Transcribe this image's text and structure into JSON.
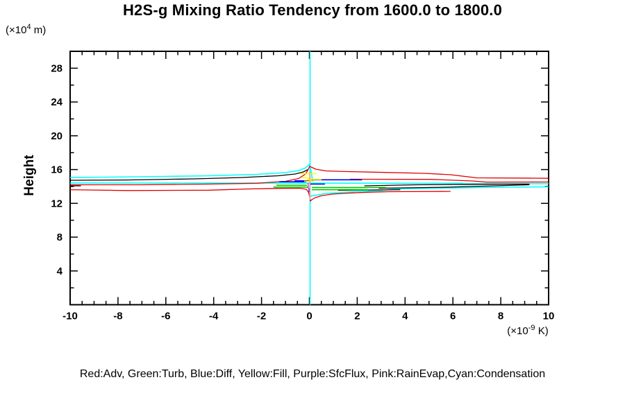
{
  "title": "H2S-g Mixing Ratio Tendency from 1600.0 to 1800.0",
  "caption": "Red:Adv, Green:Turb, Blue:Diff, Yellow:Fill, Purple:SfcFlux, Pink:RainEvap,Cyan:Condensation",
  "y_axis": {
    "label": "Height",
    "unit_prefix": "(×10",
    "unit_exp": "4",
    "unit_suffix": " m)"
  },
  "x_axis": {
    "unit_prefix": "(×10",
    "unit_exp": "-9",
    "unit_suffix": " K)"
  },
  "colors": {
    "red": "#e00000",
    "green": "#00c800",
    "blue": "#0000ee",
    "yellow": "#ffff00",
    "purple": "#9955bb",
    "pink": "#ff9999",
    "cyan": "#00ffff",
    "black": "#000000"
  },
  "chart_data": {
    "type": "line",
    "title": "H2S-g Mixing Ratio Tendency from 1600.0 to 1800.0",
    "xlabel_unit": "(×10⁻⁹ K)",
    "ylabel": "Height",
    "ylabel_unit": "(×10⁴ m)",
    "xlim": [
      -10,
      10
    ],
    "ylim": [
      0,
      30
    ],
    "x_minor_step": 0.5,
    "y_minor_step": 2,
    "grid": false,
    "legend_position": "bottom-caption",
    "x_ticks": [
      {
        "value": -10,
        "label": "-10"
      },
      {
        "value": -8,
        "label": "-8"
      },
      {
        "value": -6,
        "label": "-6"
      },
      {
        "value": -4,
        "label": "-4"
      },
      {
        "value": -2,
        "label": "-2"
      },
      {
        "value": 0,
        "label": "0"
      },
      {
        "value": 2,
        "label": "2"
      },
      {
        "value": 4,
        "label": "4"
      },
      {
        "value": 6,
        "label": "6"
      },
      {
        "value": 8,
        "label": "8"
      },
      {
        "value": 10,
        "label": "10"
      }
    ],
    "y_ticks": [
      {
        "value": 4,
        "label": "4"
      },
      {
        "value": 8,
        "label": "8"
      },
      {
        "value": 12,
        "label": "12"
      },
      {
        "value": 16,
        "label": "16"
      },
      {
        "value": 20,
        "label": "20"
      },
      {
        "value": 24,
        "label": "24"
      },
      {
        "value": 28,
        "label": "28"
      }
    ],
    "series": [
      {
        "name": "Condensation",
        "color": "#00ffff",
        "width": 1.6,
        "segments": [
          [
            [
              0.03,
              30
            ],
            [
              0.03,
              0
            ]
          ],
          [
            [
              -10,
              15.06
            ],
            [
              -7.1,
              15.14
            ],
            [
              -4.2,
              15.27
            ],
            [
              -2.2,
              15.43
            ],
            [
              -1.0,
              15.64
            ],
            [
              -0.45,
              15.88
            ],
            [
              -0.16,
              16.2
            ],
            [
              0,
              16.62
            ],
            [
              0.05,
              16.1
            ],
            [
              0.1,
              15.4
            ],
            [
              0.13,
              14.6
            ]
          ],
          [
            [
              -10,
              14.41
            ],
            [
              6.4,
              14.38
            ],
            [
              6.4,
              14.32
            ],
            [
              10,
              14.32
            ]
          ],
          [
            [
              0.04,
              12.85
            ],
            [
              0.7,
              13.17
            ],
            [
              1.9,
              13.38
            ],
            [
              3.0,
              13.5
            ],
            [
              3.5,
              13.71
            ],
            [
              5.7,
              13.81
            ],
            [
              8.0,
              13.91
            ],
            [
              10,
              13.95
            ]
          ]
        ]
      },
      {
        "name": "Black",
        "color": "#000000",
        "width": 1.3,
        "segments": [
          [
            [
              -10,
              14.73
            ],
            [
              -7.7,
              14.77
            ],
            [
              -4.8,
              14.9
            ],
            [
              -2.8,
              15.06
            ],
            [
              -1.3,
              15.27
            ],
            [
              -0.6,
              15.47
            ],
            [
              -0.25,
              15.72
            ],
            [
              -0.07,
              16.0
            ]
          ],
          [
            [
              -10,
              14.08
            ],
            [
              -9.55,
              14.08
            ]
          ],
          [
            [
              2.3,
              14.08
            ],
            [
              4.5,
              14.2
            ],
            [
              7.1,
              14.26
            ],
            [
              9.2,
              14.28
            ]
          ],
          [
            [
              2.9,
              13.79
            ],
            [
              5.7,
              13.91
            ],
            [
              7.4,
              14.04
            ],
            [
              9.2,
              14.2
            ]
          ],
          [
            [
              1.2,
              13.54
            ],
            [
              3.8,
              13.62
            ]
          ]
        ]
      },
      {
        "name": "Adv",
        "color": "#e00000",
        "width": 1.3,
        "segments": [
          [
            [
              -10,
              14.2
            ],
            [
              -7.1,
              14.2
            ],
            [
              -4.2,
              14.28
            ],
            [
              -2.2,
              14.38
            ],
            [
              -1.0,
              14.61
            ],
            [
              -0.45,
              14.94
            ],
            [
              -0.16,
              15.47
            ],
            [
              -0.04,
              16.04
            ],
            [
              0.01,
              16.38
            ],
            [
              0.28,
              16.04
            ],
            [
              0.7,
              15.84
            ],
            [
              1.6,
              15.76
            ],
            [
              2.7,
              15.69
            ],
            [
              4.8,
              15.55
            ],
            [
              5.9,
              15.39
            ],
            [
              7.0,
              15.02
            ],
            [
              9.4,
              14.98
            ],
            [
              10,
              14.96
            ]
          ],
          [
            [
              1.7,
              14.86
            ],
            [
              5.1,
              14.84
            ],
            [
              6.8,
              14.65
            ],
            [
              7.4,
              14.51
            ],
            [
              10,
              14.53
            ]
          ],
          [
            [
              -10,
              13.62
            ],
            [
              -7.6,
              13.52
            ],
            [
              -4.2,
              13.56
            ],
            [
              -2.5,
              13.71
            ],
            [
              -1.3,
              13.77
            ],
            [
              -0.4,
              13.79
            ],
            [
              -0.13,
              13.67
            ],
            [
              -0.04,
              13.34
            ],
            [
              0.01,
              12.85
            ],
            [
              0.04,
              12.27
            ],
            [
              0.1,
              12.43
            ],
            [
              0.22,
              12.64
            ],
            [
              0.48,
              12.89
            ],
            [
              0.94,
              13.09
            ],
            [
              1.6,
              13.21
            ],
            [
              2.4,
              13.31
            ],
            [
              3.3,
              13.38
            ],
            [
              5.9,
              13.42
            ]
          ]
        ]
      },
      {
        "name": "Turb",
        "color": "#00c800",
        "width": 1.6,
        "segments": [
          [
            [
              -1.5,
              13.93
            ],
            [
              -0.04,
              13.93
            ]
          ],
          [
            [
              -1.38,
              14.14
            ],
            [
              -0.1,
              14.14
            ]
          ],
          [
            [
              0.1,
              13.88
            ],
            [
              3.2,
              13.88
            ]
          ],
          [
            [
              0.1,
              13.62
            ],
            [
              2.45,
              13.62
            ]
          ]
        ]
      },
      {
        "name": "Diff",
        "color": "#0000ee",
        "width": 1.6,
        "segments": [
          [
            [
              0.07,
              14.79
            ],
            [
              2.2,
              14.79
            ]
          ],
          [
            [
              -0.62,
              14.67
            ],
            [
              0.01,
              14.67
            ]
          ],
          [
            [
              -1.26,
              14.55
            ],
            [
              -0.13,
              14.55
            ]
          ],
          [
            [
              -0.01,
              13.79
            ],
            [
              -0.01,
              13.3
            ]
          ],
          [
            [
              0.04,
              14.28
            ],
            [
              0.65,
              14.28
            ]
          ]
        ]
      },
      {
        "name": "Fill",
        "color": "#ffff00",
        "width": 1.6,
        "segments": [
          [
            [
              -0.39,
              15.51
            ],
            [
              0.3,
              15.51
            ]
          ],
          [
            [
              -0.3,
              15.02
            ],
            [
              0.04,
              15.02
            ]
          ],
          [
            [
              -0.1,
              14.83
            ],
            [
              0.51,
              14.83
            ]
          ],
          [
            [
              -0.22,
              14.61
            ],
            [
              0.19,
              14.61
            ]
          ],
          [
            [
              0.01,
              15.72
            ],
            [
              0.01,
              14.49
            ]
          ]
        ]
      },
      {
        "name": "SfcFlux",
        "color": "#9955bb",
        "width": 1.4,
        "segments": [
          [
            [
              -0.05,
              14.41
            ],
            [
              -0.05,
              13.75
            ]
          ]
        ]
      },
      {
        "name": "RainEvap",
        "color": "#ff9999",
        "width": 1.6,
        "segments": [
          [
            [
              0.02,
              15.72
            ],
            [
              0.02,
              12.43
            ]
          ]
        ]
      }
    ]
  }
}
